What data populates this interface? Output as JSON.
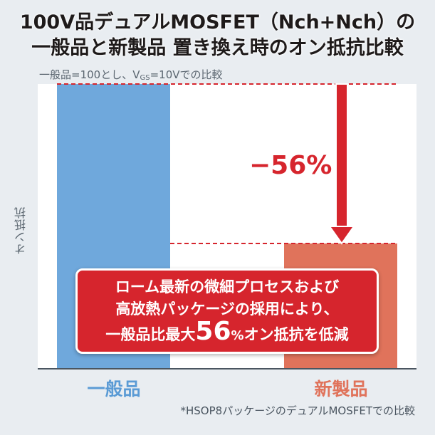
{
  "title_line1": "100V品デュアルMOSFET（Nch+Nch）の",
  "title_line2": "一般品と新製品 置き換え時のオン抵抗比較",
  "subtitle_pre": "一般品=100とし、V",
  "subtitle_sub": "GS",
  "subtitle_post": "=10Vでの比較",
  "footnote": "*HSOP8パッケージのデュアルMOSFETでの比較",
  "callout": {
    "line1": "ローム最新の微細プロセスおよび",
    "line2": "高放熱パッケージの採用により、",
    "line3_pre": "一般品比最大",
    "line3_num": "56",
    "line3_pct": "%",
    "line3_post": "オン抵抗を低減"
  },
  "chart_data": {
    "type": "bar",
    "categories": [
      "一般品",
      "新製品"
    ],
    "values": [
      100,
      44
    ],
    "ylabel": "オン抵抗",
    "ylim": [
      0,
      100
    ],
    "grid": false,
    "colors": [
      "#6fa8dc",
      "#e0735b"
    ],
    "category_label_colors": [
      "#5b9bd5",
      "#e0735b"
    ],
    "annotation": "−56%",
    "annotation_color": "#d6252d"
  }
}
